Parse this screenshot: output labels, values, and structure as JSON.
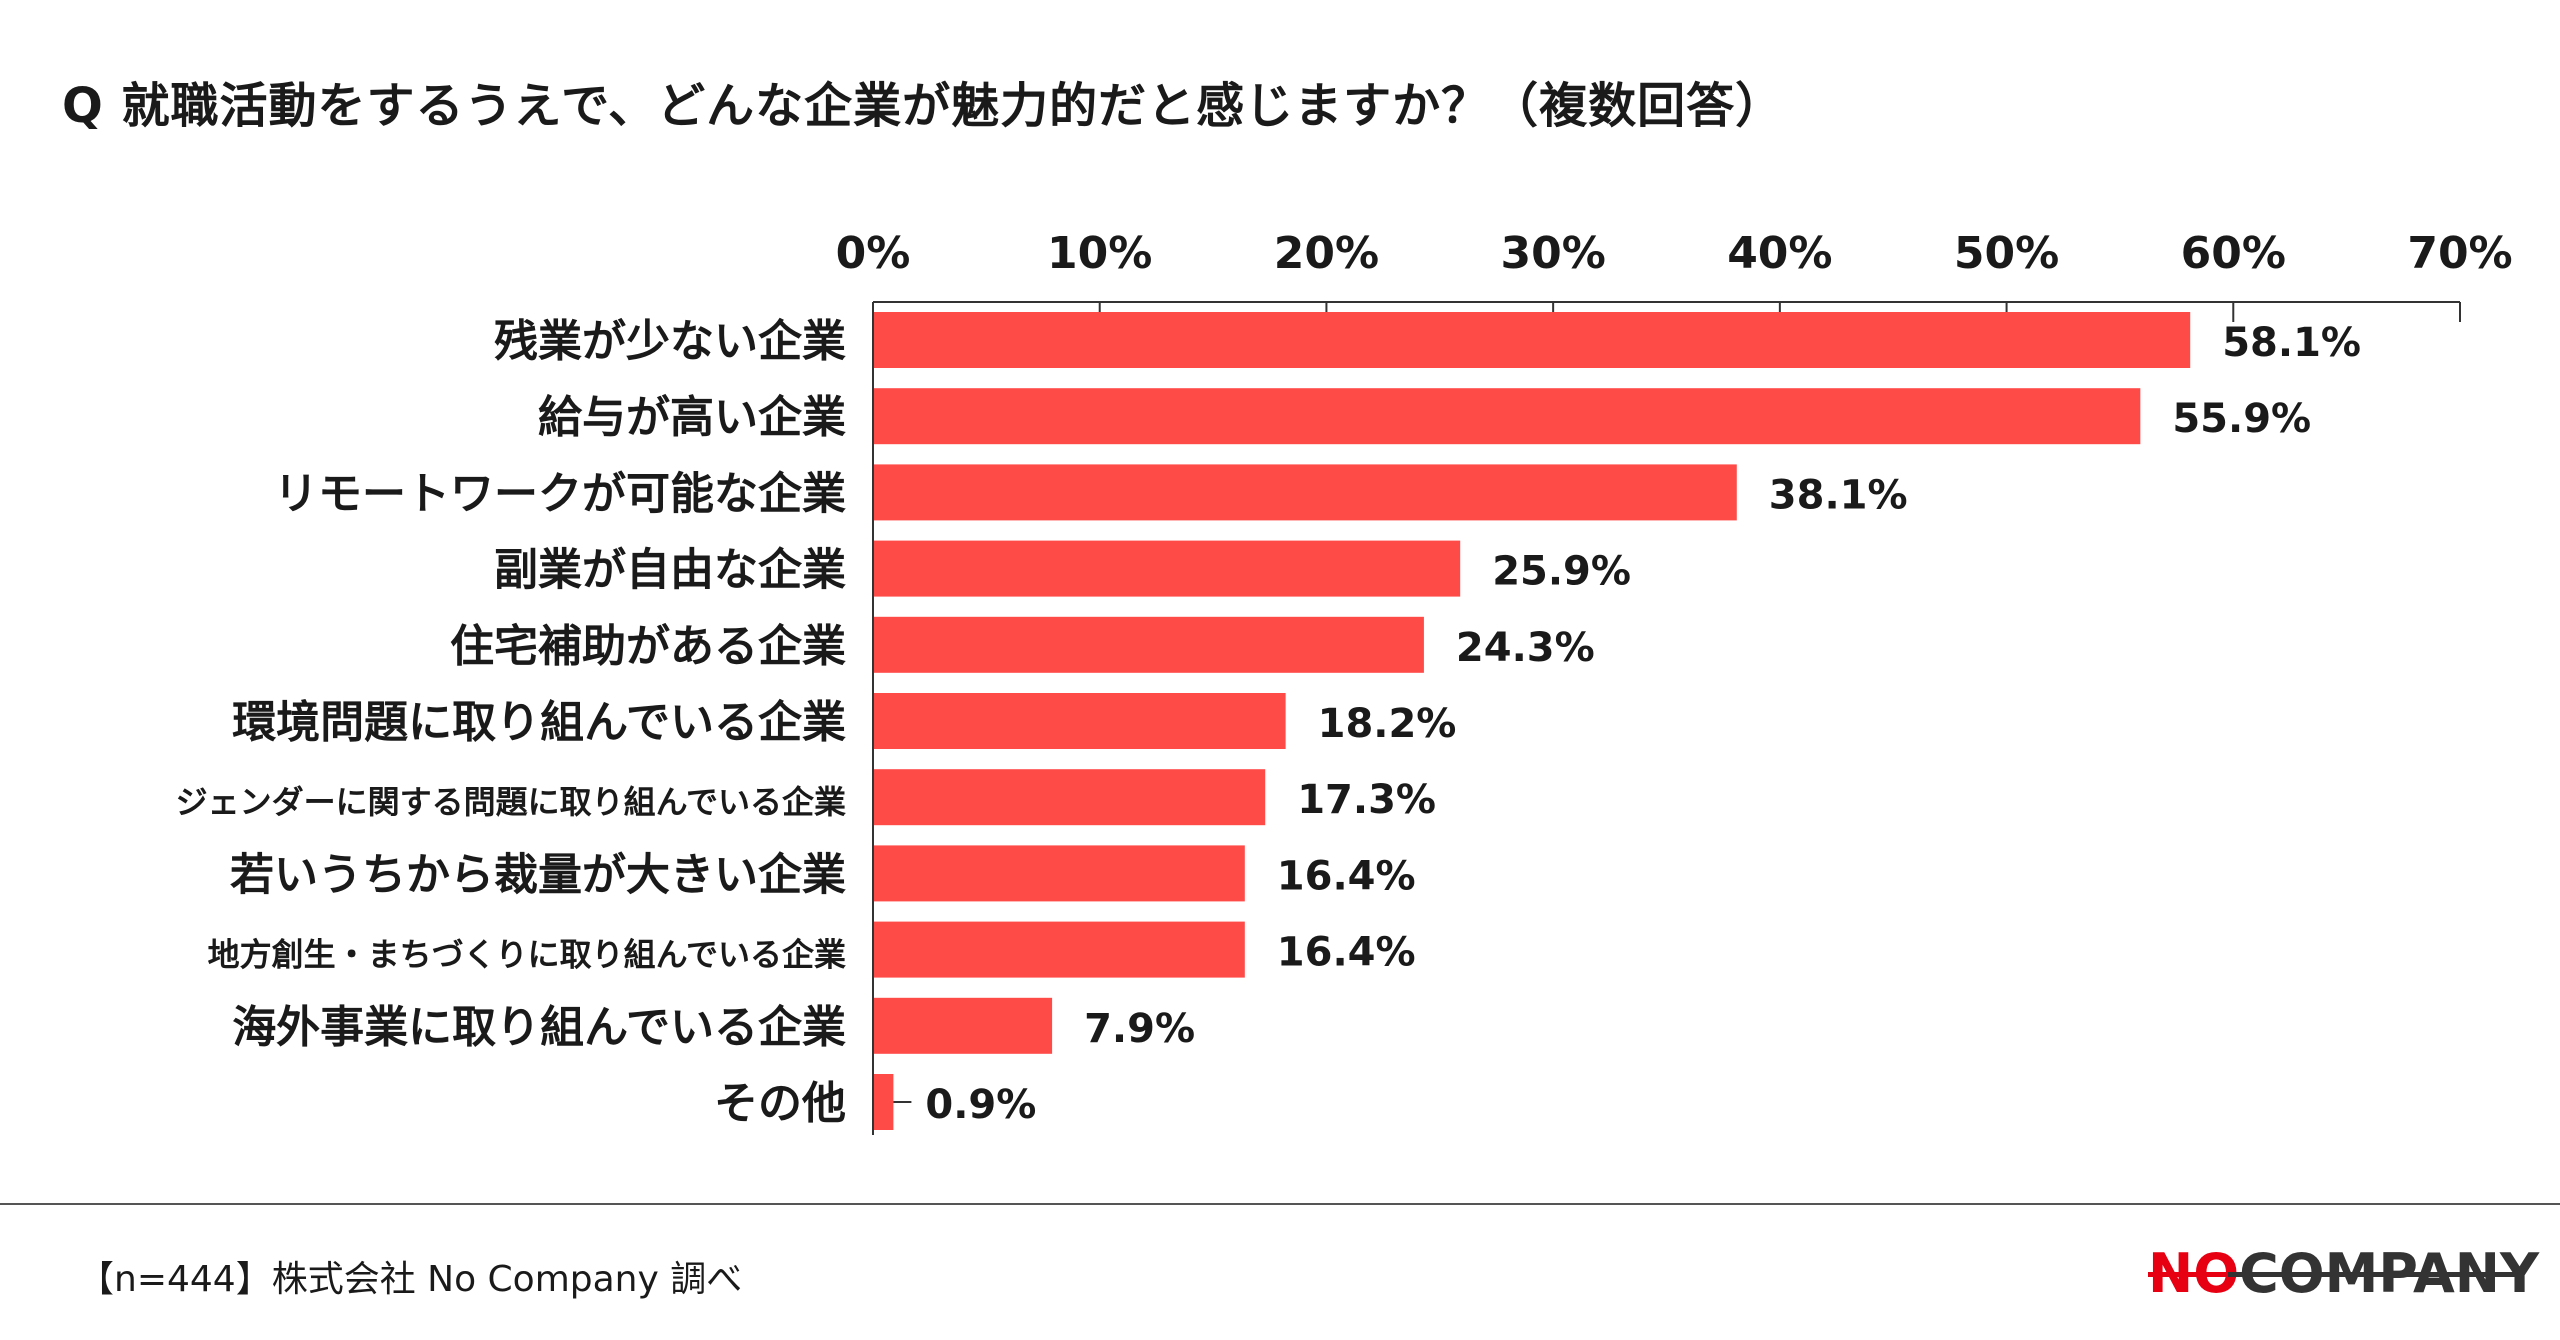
{
  "title": "Q 就職活動をするうえで、どんな企業が魅力的だと感じますか？（複数回答）",
  "footnote": "【n=444】株式会社 No Company 調べ",
  "logo": {
    "part1": "NO",
    "part2": "COMPANY"
  },
  "colors": {
    "bar": "#ff4b48",
    "axis": "#333333",
    "logo_red": "#e60012"
  },
  "chart_data": {
    "type": "bar",
    "orientation": "horizontal",
    "categories": [
      "残業が少ない企業",
      "給与が高い企業",
      "リモートワークが可能な企業",
      "副業が自由な企業",
      "住宅補助がある企業",
      "環境問題に取り組んでいる企業",
      "ジェンダーに関する問題に取り組んでいる企業",
      "若いうちから裁量が大きい企業",
      "地方創生・まちづくりに取り組んでいる企業",
      "海外事業に取り組んでいる企業",
      "その他"
    ],
    "values": [
      58.1,
      55.9,
      38.1,
      25.9,
      24.3,
      18.2,
      17.3,
      16.4,
      16.4,
      7.9,
      0.9
    ],
    "value_labels": [
      "58.1%",
      "55.9%",
      "38.1%",
      "25.9%",
      "24.3%",
      "18.2%",
      "17.3%",
      "16.4%",
      "16.4%",
      "7.9%",
      "0.9%"
    ],
    "xlim": [
      0,
      70
    ],
    "ticks": [
      0,
      10,
      20,
      30,
      40,
      50,
      60,
      70
    ],
    "tick_labels": [
      "0%",
      "10%",
      "20%",
      "30%",
      "40%",
      "50%",
      "60%",
      "70%"
    ],
    "axis_position": "top",
    "grid": false,
    "legend": "none"
  }
}
